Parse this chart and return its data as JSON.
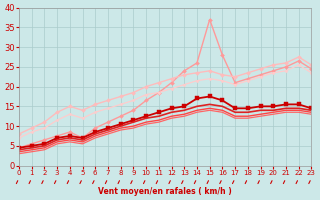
{
  "title": "",
  "xlabel": "Vent moyen/en rafales ( km/h )",
  "ylabel": "",
  "xlim": [
    0,
    23
  ],
  "ylim": [
    0,
    40
  ],
  "yticks": [
    0,
    5,
    10,
    15,
    20,
    25,
    30,
    35,
    40
  ],
  "xticks": [
    0,
    1,
    2,
    3,
    4,
    5,
    6,
    7,
    8,
    9,
    10,
    11,
    12,
    13,
    14,
    15,
    16,
    17,
    18,
    19,
    20,
    21,
    22,
    23
  ],
  "bg_color": "#cce8e8",
  "grid_color": "#aacccc",
  "series": [
    {
      "x": [
        0,
        1,
        2,
        3,
        4,
        5,
        6,
        7,
        8,
        9,
        10,
        11,
        12,
        13,
        14,
        15,
        16,
        17,
        18,
        19,
        20,
        21,
        22,
        23
      ],
      "y": [
        4.5,
        5.5,
        6.5,
        7.5,
        8.5,
        7.0,
        9.5,
        11.0,
        12.5,
        14.0,
        16.5,
        18.5,
        21.0,
        24.0,
        26.0,
        37.0,
        28.0,
        21.0,
        22.0,
        23.0,
        24.0,
        25.0,
        26.5,
        24.5
      ],
      "color": "#ff9999",
      "marker": "D",
      "markersize": 2.0,
      "linewidth": 1.0
    },
    {
      "x": [
        0,
        1,
        2,
        3,
        4,
        5,
        6,
        7,
        8,
        9,
        10,
        11,
        12,
        13,
        14,
        15,
        16,
        17,
        18,
        19,
        20,
        21,
        22,
        23
      ],
      "y": [
        8.0,
        9.5,
        11.0,
        13.5,
        15.0,
        14.0,
        15.5,
        16.5,
        17.5,
        18.5,
        20.0,
        21.0,
        22.0,
        23.0,
        23.5,
        24.0,
        23.0,
        22.5,
        23.5,
        24.5,
        25.5,
        26.0,
        27.5,
        25.5
      ],
      "color": "#ffbbbb",
      "marker": "D",
      "markersize": 2.0,
      "linewidth": 1.0
    },
    {
      "x": [
        0,
        1,
        2,
        3,
        4,
        5,
        6,
        7,
        8,
        9,
        10,
        11,
        12,
        13,
        14,
        15,
        16,
        17,
        18,
        19,
        20,
        21,
        22,
        23
      ],
      "y": [
        7.0,
        8.5,
        9.5,
        11.5,
        13.0,
        12.0,
        13.5,
        14.5,
        15.5,
        16.5,
        18.0,
        18.5,
        19.5,
        20.5,
        21.5,
        22.0,
        21.5,
        20.5,
        21.5,
        22.5,
        23.5,
        24.0,
        25.5,
        23.5
      ],
      "color": "#ffcccc",
      "marker": "D",
      "markersize": 1.5,
      "linewidth": 0.9
    },
    {
      "x": [
        0,
        1,
        2,
        3,
        4,
        5,
        6,
        7,
        8,
        9,
        10,
        11,
        12,
        13,
        14,
        15,
        16,
        17,
        18,
        19,
        20,
        21,
        22,
        23
      ],
      "y": [
        4.5,
        5.0,
        5.5,
        7.0,
        7.5,
        7.0,
        8.5,
        9.5,
        10.5,
        11.5,
        12.5,
        13.5,
        14.5,
        15.0,
        17.0,
        17.5,
        16.5,
        14.5,
        14.5,
        15.0,
        15.0,
        15.5,
        15.5,
        14.5
      ],
      "color": "#cc0000",
      "marker": "s",
      "markersize": 2.5,
      "linewidth": 1.3
    },
    {
      "x": [
        0,
        1,
        2,
        3,
        4,
        5,
        6,
        7,
        8,
        9,
        10,
        11,
        12,
        13,
        14,
        15,
        16,
        17,
        18,
        19,
        20,
        21,
        22,
        23
      ],
      "y": [
        4.0,
        4.5,
        5.0,
        6.5,
        7.0,
        6.5,
        8.0,
        9.0,
        10.0,
        11.0,
        12.0,
        12.5,
        13.5,
        14.0,
        15.0,
        15.5,
        15.0,
        13.5,
        13.5,
        14.0,
        14.0,
        14.5,
        14.5,
        14.0
      ],
      "color": "#dd2222",
      "marker": null,
      "markersize": 0,
      "linewidth": 1.2
    },
    {
      "x": [
        0,
        1,
        2,
        3,
        4,
        5,
        6,
        7,
        8,
        9,
        10,
        11,
        12,
        13,
        14,
        15,
        16,
        17,
        18,
        19,
        20,
        21,
        22,
        23
      ],
      "y": [
        3.5,
        4.0,
        4.5,
        6.0,
        6.5,
        6.0,
        7.5,
        8.5,
        9.5,
        10.0,
        11.0,
        11.5,
        12.5,
        13.0,
        14.0,
        14.5,
        14.0,
        12.5,
        12.5,
        13.0,
        13.5,
        14.0,
        14.0,
        13.5
      ],
      "color": "#ff4444",
      "marker": null,
      "markersize": 0,
      "linewidth": 1.0
    },
    {
      "x": [
        0,
        1,
        2,
        3,
        4,
        5,
        6,
        7,
        8,
        9,
        10,
        11,
        12,
        13,
        14,
        15,
        16,
        17,
        18,
        19,
        20,
        21,
        22,
        23
      ],
      "y": [
        3.0,
        3.5,
        4.0,
        5.5,
        6.0,
        5.5,
        7.0,
        8.0,
        9.0,
        9.5,
        10.5,
        11.0,
        12.0,
        12.5,
        13.5,
        14.0,
        13.5,
        12.0,
        12.0,
        12.5,
        13.0,
        13.5,
        13.5,
        13.0
      ],
      "color": "#ff6666",
      "marker": null,
      "markersize": 0,
      "linewidth": 0.9
    }
  ]
}
